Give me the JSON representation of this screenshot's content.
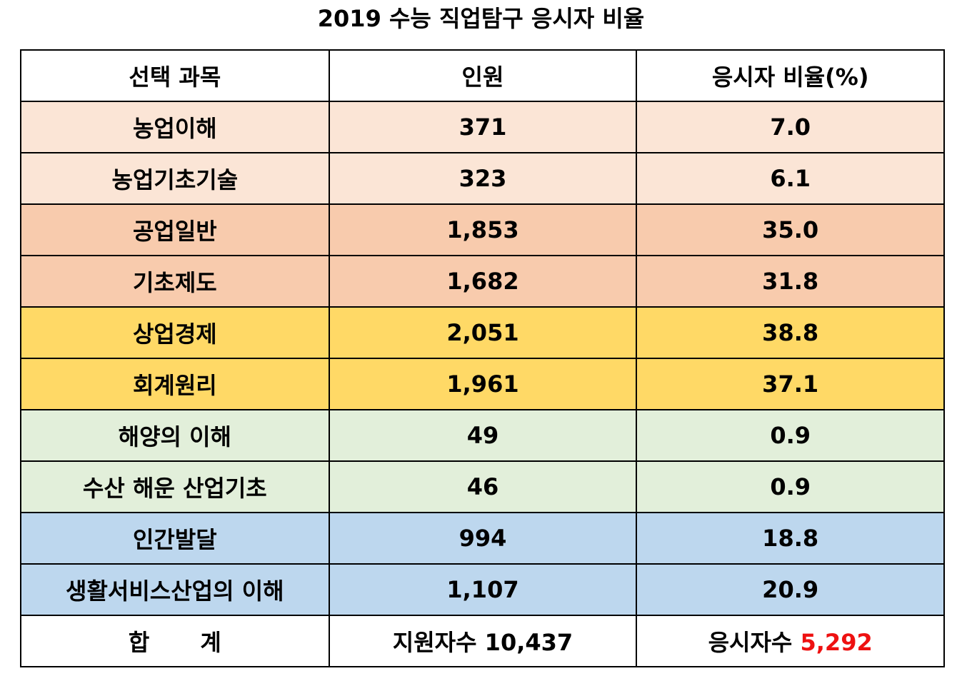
{
  "title": "2019 수능 직업탐구 응시자 비율",
  "headers": [
    "선택 과목",
    "인원",
    "응시자 비율(%)"
  ],
  "rows": [
    {
      "subject": "농업이해",
      "count": "371",
      "ratio": "7.0",
      "group": "g1"
    },
    {
      "subject": "농업기초기술",
      "count": "323",
      "ratio": "6.1",
      "group": "g1"
    },
    {
      "subject": "공업일반",
      "count": "1,853",
      "ratio": "35.0",
      "group": "g2"
    },
    {
      "subject": "기초제도",
      "count": "1,682",
      "ratio": "31.8",
      "group": "g2"
    },
    {
      "subject": "상업경제",
      "count": "2,051",
      "ratio": "38.8",
      "group": "g3"
    },
    {
      "subject": "회계원리",
      "count": "1,961",
      "ratio": "37.1",
      "group": "g3"
    },
    {
      "subject": "해양의 이해",
      "count": "49",
      "ratio": "0.9",
      "group": "g4"
    },
    {
      "subject": "수산 해운 산업기초",
      "count": "46",
      "ratio": "0.9",
      "group": "g4"
    },
    {
      "subject": "인간발달",
      "count": "994",
      "ratio": "18.8",
      "group": "g5"
    },
    {
      "subject": "생활서비스산업의 이해",
      "count": "1,107",
      "ratio": "20.9",
      "group": "g5"
    }
  ],
  "total": {
    "label": "합 계",
    "applicants_label": "지원자수 10,437",
    "takers_label": "응시자수",
    "takers_value": "5,292"
  },
  "colors": {
    "g1": "#fbe5d6",
    "g2": "#f8cbad",
    "g3": "#ffd966",
    "g4": "#e2efda",
    "g5": "#bdd7ee",
    "highlight": "#ee1111"
  }
}
